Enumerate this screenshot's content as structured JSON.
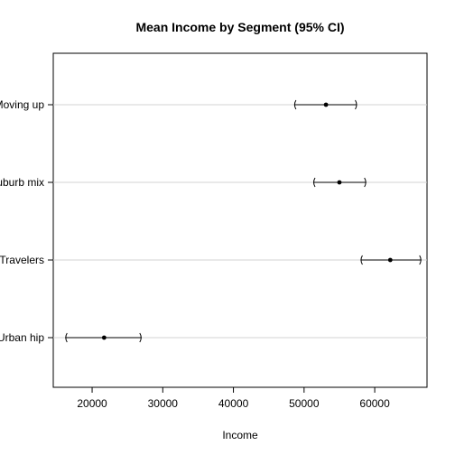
{
  "chart_data": {
    "type": "dot-errorbar",
    "title": "Mean Income by Segment (95% CI)",
    "xlabel": "Income",
    "ylabel": "",
    "xlim": [
      14500,
      67400
    ],
    "x_ticks": [
      20000,
      30000,
      40000,
      50000,
      60000
    ],
    "grid": "horizontal",
    "categories": [
      "Urban hip",
      "Travelers",
      "Suburb mix",
      "Moving up"
    ],
    "points": [
      {
        "label": "Urban hip",
        "mean": 21700,
        "lower": 16200,
        "upper": 27000
      },
      {
        "label": "Travelers",
        "mean": 62200,
        "lower": 58000,
        "upper": 66600
      },
      {
        "label": "Suburb mix",
        "mean": 55000,
        "lower": 51300,
        "upper": 58800
      },
      {
        "label": "Moving up",
        "mean": 53100,
        "lower": 48600,
        "upper": 57500
      }
    ]
  }
}
